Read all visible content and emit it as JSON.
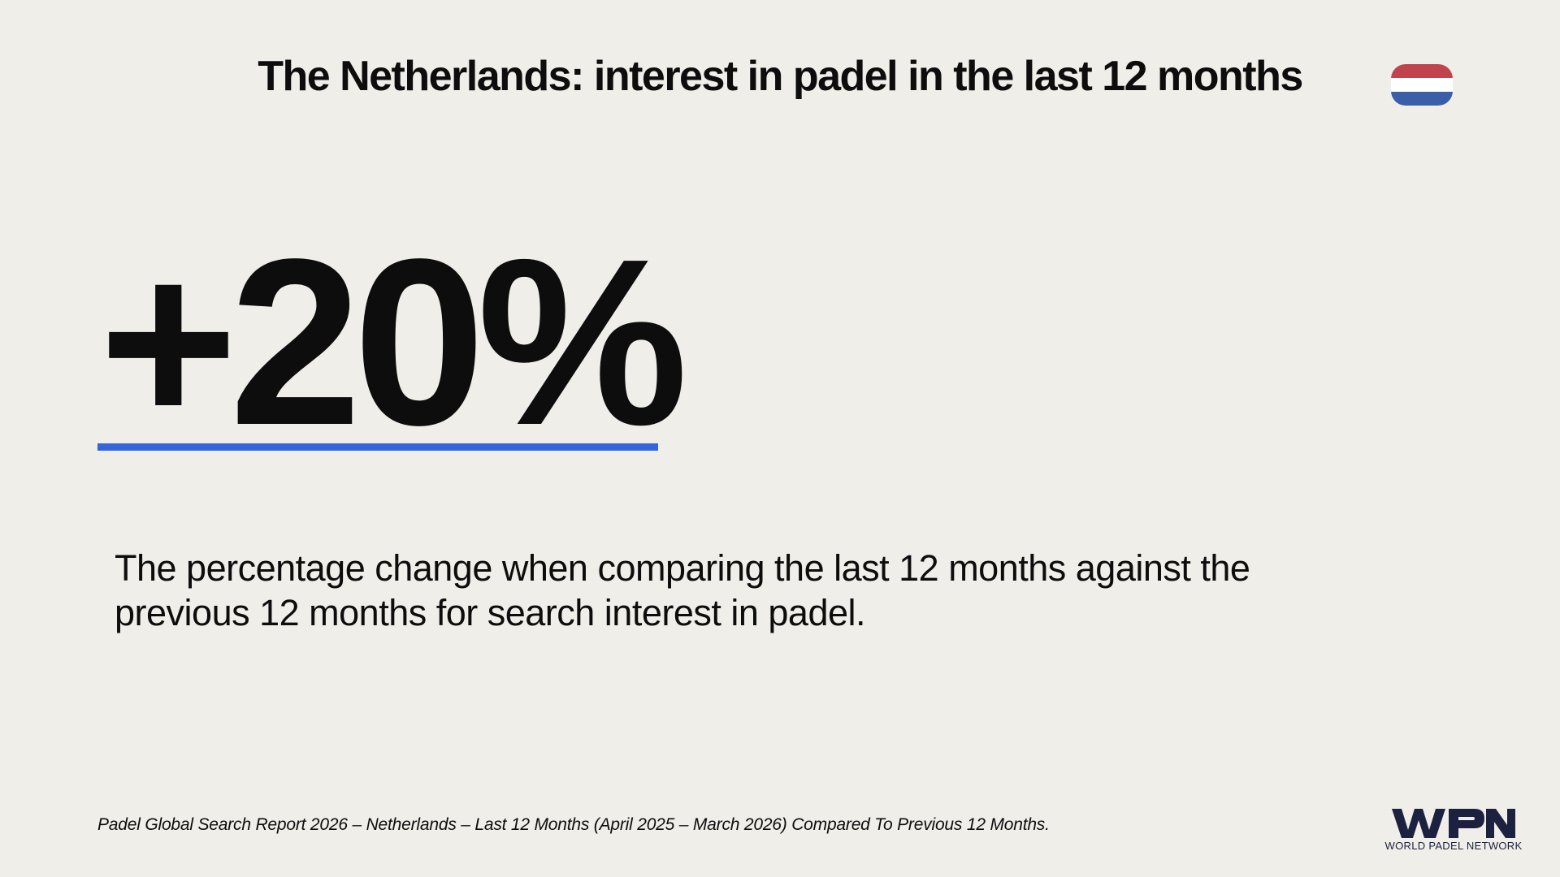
{
  "header": {
    "title": "The Netherlands: interest in padel in the last 12 months",
    "flag_icon": "netherlands-flag-icon",
    "flag_colors": [
      "#c0434e",
      "#ffffff",
      "#3a5fa8"
    ]
  },
  "main": {
    "stat_value": "+20%",
    "accent_color": "#3366dd",
    "description": "The percentage change when comparing the last 12 months against the previous 12 months for search interest in padel."
  },
  "footer": {
    "source": "Padel Global Search Report 2026 – Netherlands – Last 12 Months (April 2025 – March 2026) Compared To Previous 12 Months.",
    "logo_mark": "WPN",
    "logo_text": "WORLD PADEL NETWORK",
    "logo_color": "#1c2140"
  }
}
